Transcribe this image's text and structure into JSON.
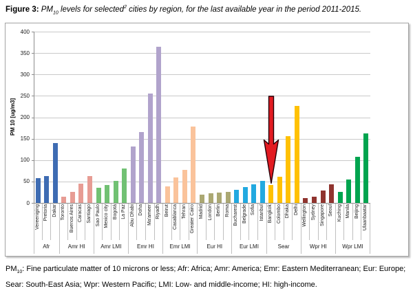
{
  "title": {
    "figure_label": "Figure 3:",
    "pm": "PM",
    "pm_sub": "10",
    "mid": " levels for selected",
    "sup": "2",
    "rest": " cities by region, for the last available year in the period 2011-2015."
  },
  "chart_data": {
    "type": "bar",
    "title": "",
    "xlabel": "",
    "ylabel": "PM 10 [ug/m3]",
    "ylim": [
      0,
      400
    ],
    "ytick_step": 50,
    "grid": "horizontal",
    "legend": "none",
    "groups": [
      {
        "label": "Afr",
        "color": "#3e6cb3",
        "cities": [
          "Vereeniging",
          "Pretoria",
          "Dakar"
        ],
        "values": [
          58,
          62,
          140
        ]
      },
      {
        "label": "Amr HI",
        "color": "#e79c94",
        "cities": [
          "Toronto",
          "Buenos Aires",
          "Caracas",
          "Santiago"
        ],
        "values": [
          14,
          26,
          45,
          63
        ]
      },
      {
        "label": "Amr LMI",
        "color": "#71c173",
        "cities": [
          "Sao Paulo",
          "Mexico city",
          "Bogotá",
          "La Paz"
        ],
        "values": [
          35,
          41,
          51,
          81
        ]
      },
      {
        "label": "Emr HI",
        "color": "#b1a3cc",
        "cities": [
          "Abu Dhabi",
          "Doha",
          "Ma'ameer",
          "Riyadh"
        ],
        "values": [
          131,
          166,
          256,
          365
        ]
      },
      {
        "label": "Emr LMI",
        "color": "#fac39b",
        "cities": [
          "Beirut",
          "Casablanca",
          "Tehran",
          "Greater Cairo"
        ],
        "values": [
          38,
          60,
          77,
          178
        ]
      },
      {
        "label": "Eur HI",
        "color": "#aba873",
        "cities": [
          "Madrid",
          "London",
          "Berlin",
          "Roma"
        ],
        "values": [
          20,
          22,
          24,
          26
        ]
      },
      {
        "label": "Eur LMI",
        "color": "#22a9e0",
        "cities": [
          "Bucharest",
          "Belgrade",
          "Sofia",
          "Istanbul"
        ],
        "values": [
          30,
          37,
          43,
          51
        ]
      },
      {
        "label": "Sear",
        "color": "#ffc103",
        "cities": [
          "Bangkok",
          "Colombo",
          "Dhaka",
          "Delhi"
        ],
        "values": [
          41,
          61,
          156,
          226
        ]
      },
      {
        "label": "Wpr HI",
        "color": "#90342f",
        "cities": [
          "Wellington",
          "Sydney",
          "Singapore",
          "Seoul"
        ],
        "values": [
          12,
          15,
          29,
          44
        ]
      },
      {
        "label": "Wpr LMI",
        "color": "#00a44f",
        "cities": [
          "Kuching",
          "Manila",
          "Beijing",
          "Ulaanbaatar"
        ],
        "values": [
          25,
          54,
          107,
          163
        ]
      }
    ],
    "annotation": {
      "type": "arrow-down",
      "target": "Bangkok",
      "fill": "#e21b22",
      "outline": "#260008"
    }
  },
  "footnote": {
    "pm": "PM",
    "pm_sub": "10",
    "text": ": Fine particulate matter of 10 microns or less; Afr: Africa;  Amr: America; Emr: Eastern Mediterranean; Eur: Europe; Sear: South-East Asia; Wpr: Western Pacific; LMI: Low- and middle-income; HI: high-income."
  }
}
